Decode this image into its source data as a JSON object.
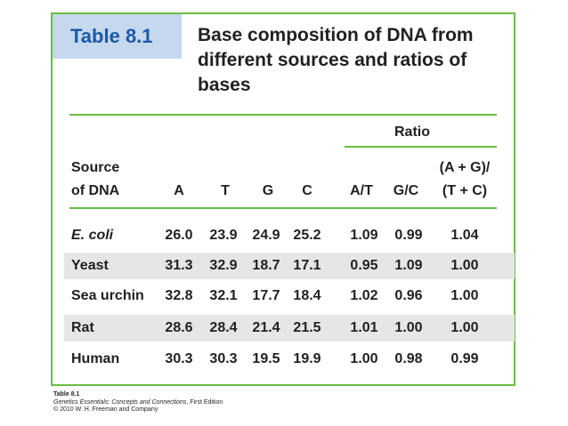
{
  "table": {
    "id": "Table 8.1",
    "title": "Base composition of DNA from different sources and ratios of bases",
    "ratio_header": "Ratio",
    "columns": {
      "source_line1": "Source",
      "source_line2": "of DNA",
      "a": "A",
      "t": "T",
      "g": "G",
      "c": "C",
      "at": "A/T",
      "gc": "G/C",
      "agtc_line1": "(A + G)/",
      "agtc_line2": "(T + C)"
    },
    "rows": [
      {
        "source": "E. coli",
        "a": "26.0",
        "t": "23.9",
        "g": "24.9",
        "c": "25.2",
        "at": "1.09",
        "gc": "0.99",
        "agtc": "1.04"
      },
      {
        "source": "Yeast",
        "a": "31.3",
        "t": "32.9",
        "g": "18.7",
        "c": "17.1",
        "at": "0.95",
        "gc": "1.09",
        "agtc": "1.00"
      },
      {
        "source": "Sea urchin",
        "a": "32.8",
        "t": "32.1",
        "g": "17.7",
        "c": "18.4",
        "at": "1.02",
        "gc": "0.96",
        "agtc": "1.00"
      },
      {
        "source": "Rat",
        "a": "28.6",
        "t": "28.4",
        "g": "21.4",
        "c": "21.5",
        "at": "1.01",
        "gc": "1.00",
        "agtc": "1.00"
      },
      {
        "source": "Human",
        "a": "30.3",
        "t": "30.3",
        "g": "19.5",
        "g_dup": "",
        "c": "19.9",
        "at": "1.00",
        "gc": "0.98",
        "agtc": "0.99"
      }
    ]
  },
  "footer": {
    "table_id": "Table 8.1",
    "book": "Genetics Essentials: Concepts and Connections",
    "edition": ", First Edition",
    "copyright": "© 2010 W. H. Freeman and Company"
  },
  "colors": {
    "accent_green": "#6abd45",
    "tag_blue": "#c5d8ee",
    "tag_text": "#1b5aa6",
    "row_shade": "#e6e6e7"
  }
}
